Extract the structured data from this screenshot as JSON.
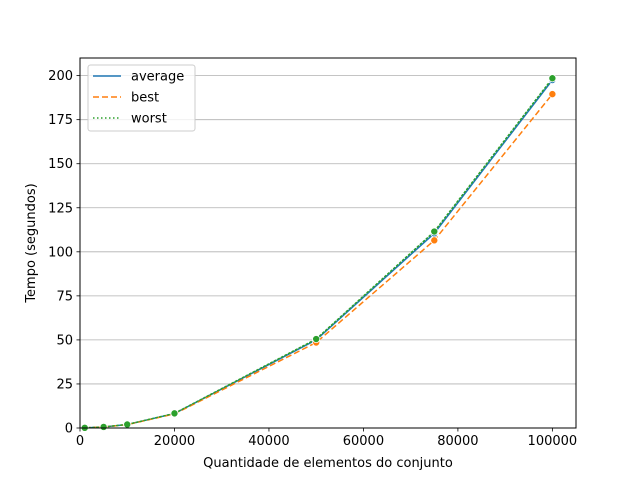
{
  "chart_data": {
    "type": "line",
    "title": "",
    "xlabel": "Quantidade de elementos do conjunto",
    "ylabel": "Tempo (segundos)",
    "xlim": [
      0,
      105000
    ],
    "ylim": [
      0,
      210
    ],
    "xticks": [
      0,
      20000,
      40000,
      60000,
      80000,
      100000
    ],
    "yticks": [
      0,
      25,
      50,
      75,
      100,
      125,
      150,
      175,
      200
    ],
    "grid": "horizontal",
    "legend_position": "top-left",
    "x": [
      1000,
      5000,
      10000,
      20000,
      50000,
      75000,
      100000
    ],
    "series": [
      {
        "name": "average",
        "values": [
          0.1,
          0.6,
          2.0,
          8.2,
          50.0,
          110.5,
          197.5
        ],
        "color": "#1f77b4",
        "style": "solid"
      },
      {
        "name": "best",
        "values": [
          0.1,
          0.6,
          1.9,
          8.0,
          48.5,
          106.5,
          189.5
        ],
        "color": "#ff7f0e",
        "style": "dashed"
      },
      {
        "name": "worst",
        "values": [
          0.1,
          0.6,
          2.0,
          8.3,
          50.5,
          111.5,
          198.5
        ],
        "color": "#2ca02c",
        "style": "dotted"
      }
    ]
  }
}
